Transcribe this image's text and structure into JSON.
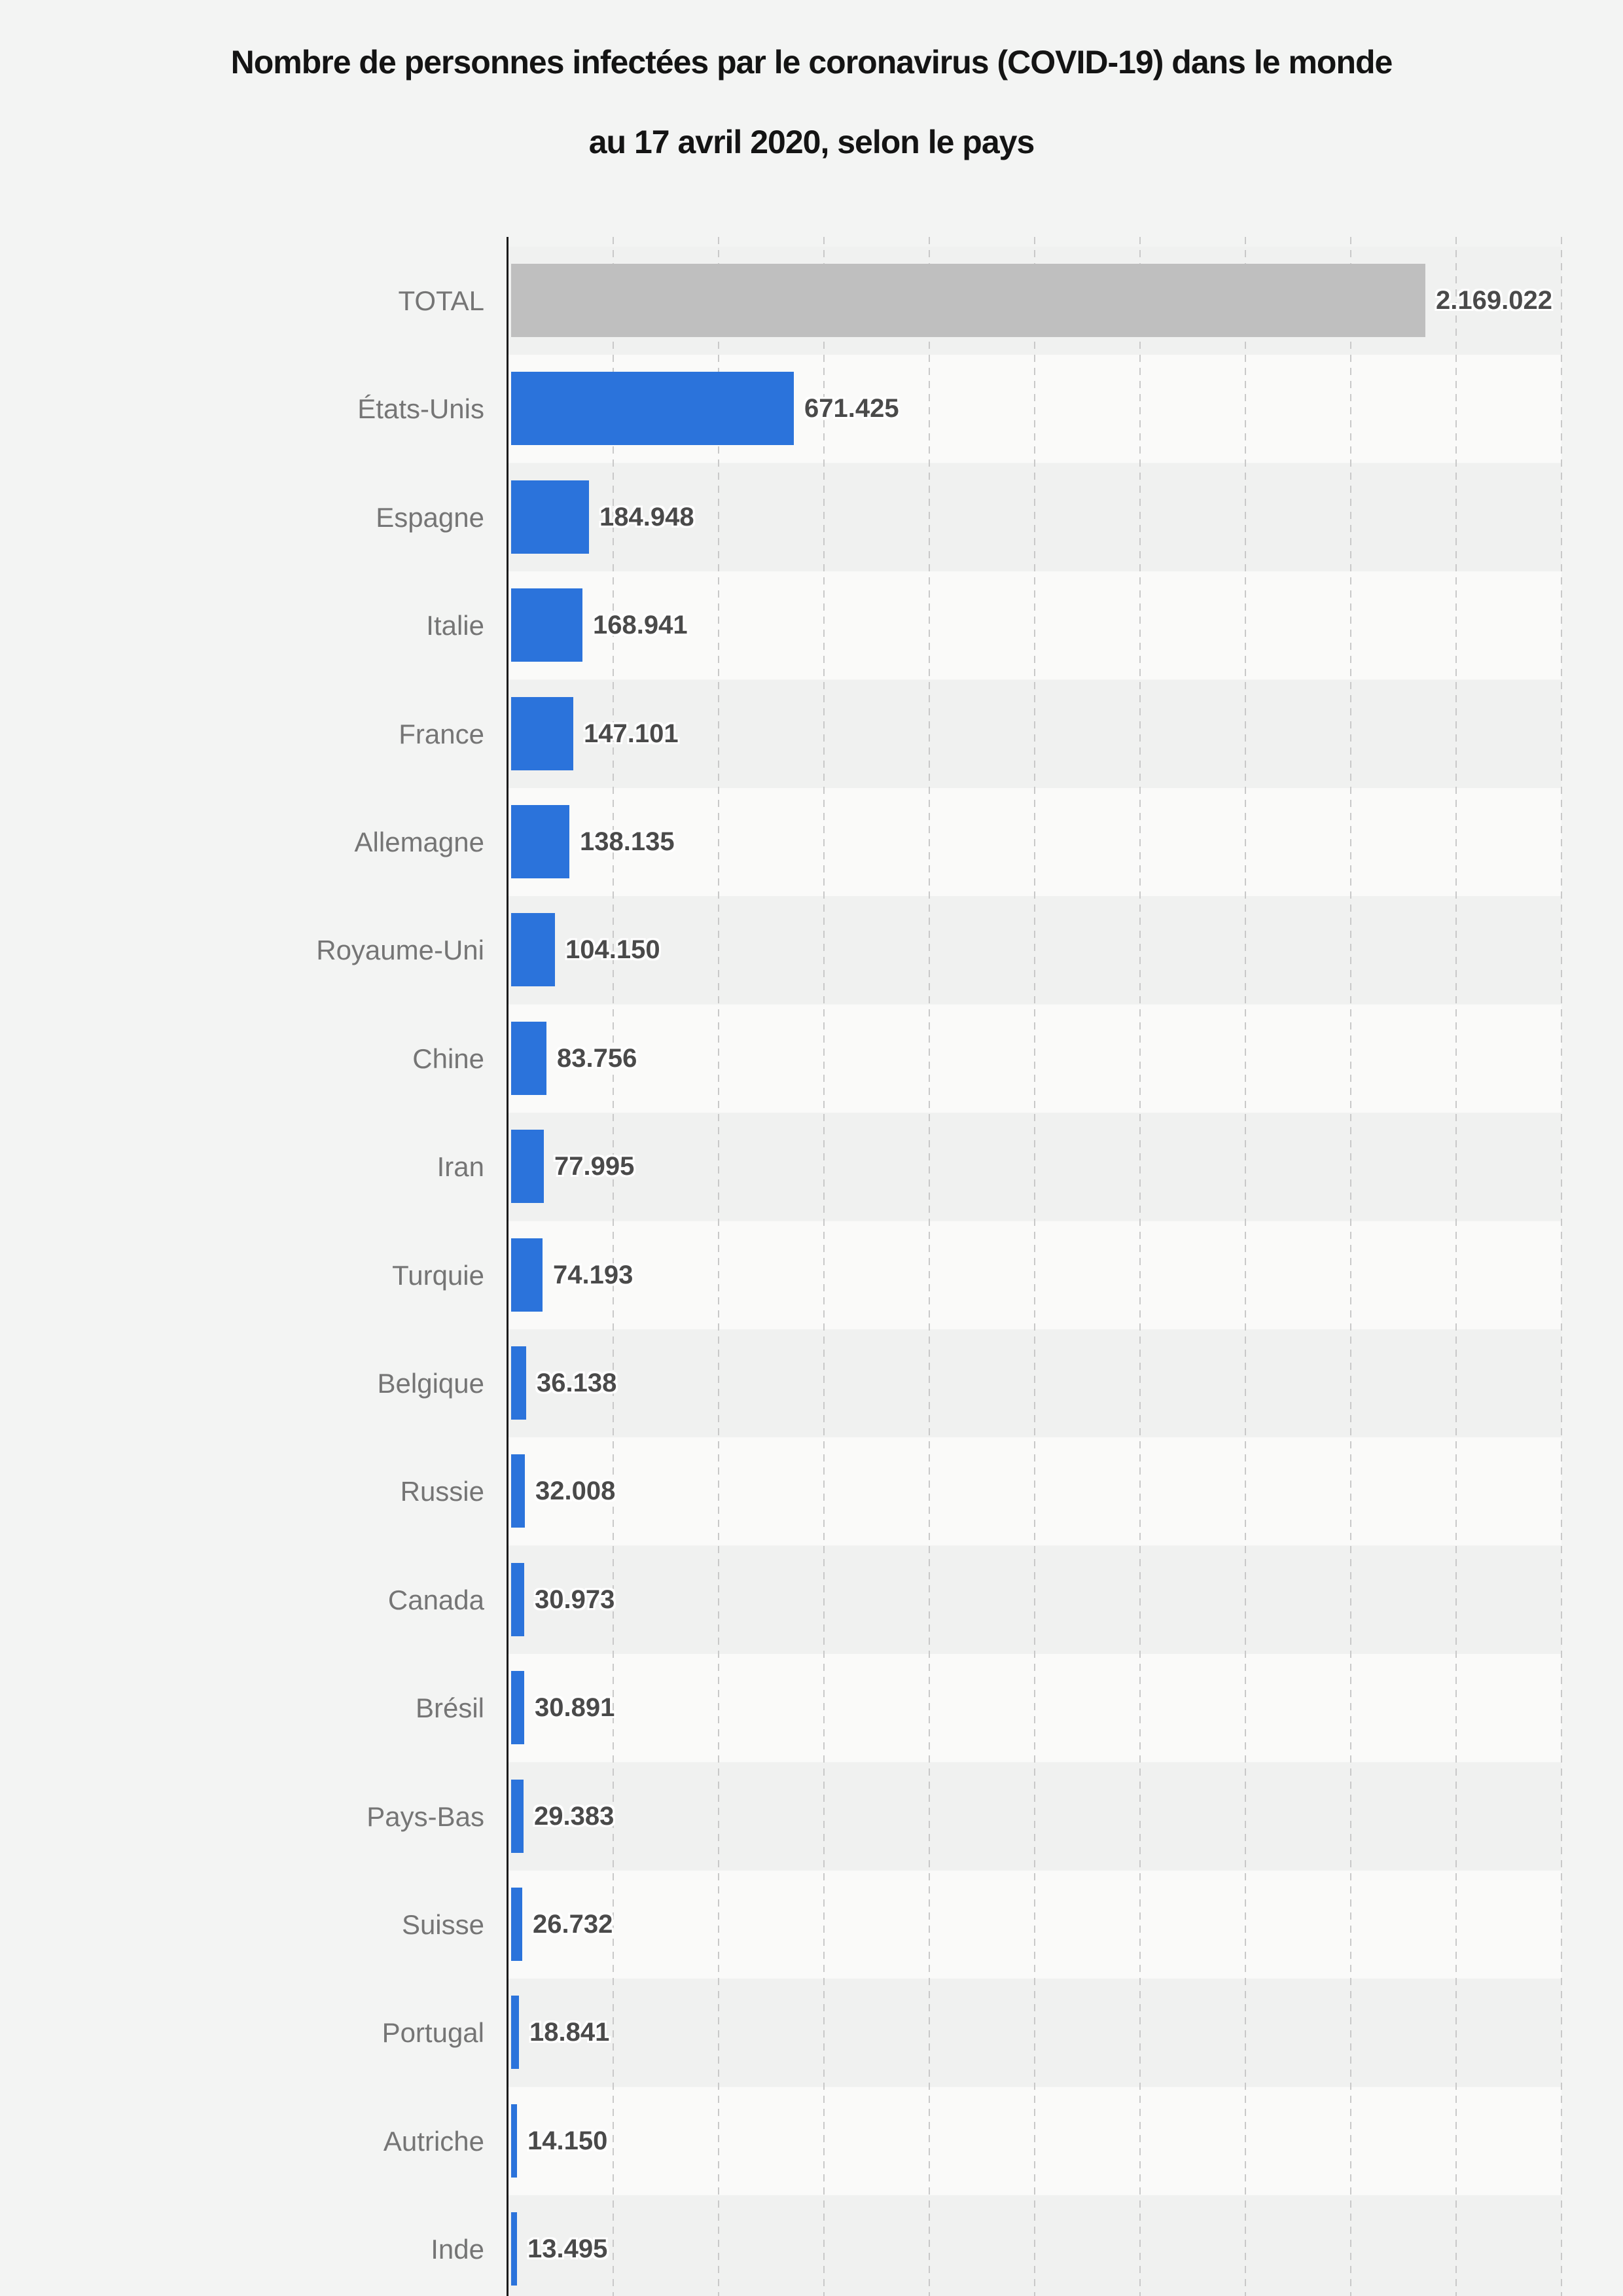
{
  "title": {
    "line1": "Nombre de personnes infectées par le coronavirus (COVID-19) dans le monde",
    "line2": "au 17 avril 2020, selon le pays"
  },
  "chart_data": {
    "type": "bar",
    "orientation": "horizontal",
    "title": "Nombre de personnes infectées par le coronavirus (COVID-19) dans le monde au 17 avril 2020, selon le pays",
    "categories": [
      "TOTAL",
      "États-Unis",
      "Espagne",
      "Italie",
      "France",
      "Allemagne",
      "Royaume-Uni",
      "Chine",
      "Iran",
      "Turquie",
      "Belgique",
      "Russie",
      "Canada",
      "Brésil",
      "Pays-Bas",
      "Suisse",
      "Portugal",
      "Autriche",
      "Inde"
    ],
    "values": [
      2169022,
      671425,
      184948,
      168941,
      147101,
      138135,
      104150,
      83756,
      77995,
      74193,
      36138,
      32008,
      30973,
      30891,
      29383,
      26732,
      18841,
      14150,
      13495
    ],
    "value_labels": [
      "2.169.022",
      "671.425",
      "184.948",
      "168.941",
      "147.101",
      "138.135",
      "104.150",
      "83.756",
      "77.995",
      "74.193",
      "36.138",
      "32.008",
      "30.973",
      "30.891",
      "29.383",
      "26.732",
      "18.841",
      "14.150",
      "13.495"
    ],
    "xlabel": "",
    "ylabel": "",
    "xlim": [
      0,
      2500000
    ],
    "grid_interval": 250000,
    "grid_style": "dashed-vertical",
    "legend": "none",
    "colors": {
      "total_bar": "#bfbfbf",
      "country_bar": "#2b73db",
      "band_dark": "#f0f1f0",
      "band_light": "#fafaf9",
      "page_bg": "#f3f4f3",
      "gridline": "#c9c9c9",
      "axis": "#1a1a1a",
      "category_label": "#757575",
      "value_label": "#4a4a4a",
      "title_text": "#141414"
    }
  }
}
